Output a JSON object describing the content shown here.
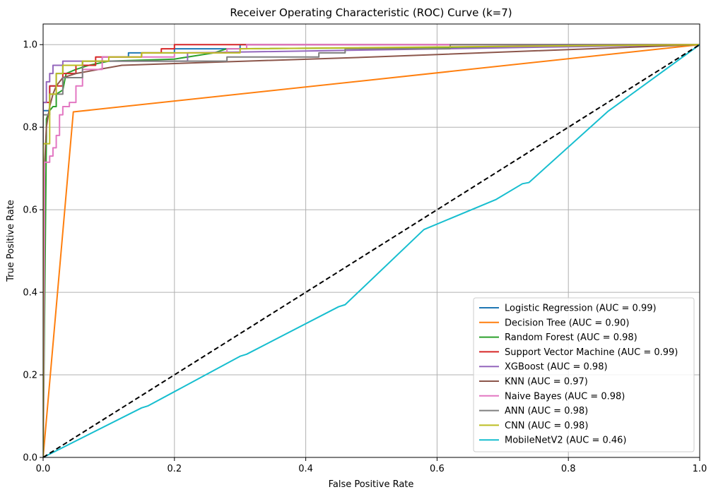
{
  "chart_data": {
    "type": "line",
    "title": "Receiver Operating Characteristic (ROC) Curve (k=7)",
    "xlabel": "False Positive Rate",
    "ylabel": "True Positive Rate",
    "xlim": [
      0,
      1
    ],
    "ylim": [
      0,
      1.05
    ],
    "xticks": [
      "0.0",
      "0.2",
      "0.4",
      "0.6",
      "0.8",
      "1.0"
    ],
    "yticks": [
      "0.0",
      "0.2",
      "0.4",
      "0.6",
      "0.8",
      "1.0"
    ],
    "grid": true,
    "legend_position": "lower-right",
    "series": [
      {
        "name": "Logistic Regression (AUC = 0.99)",
        "color": "#1f77b4",
        "x": [
          0,
          0,
          0.01,
          0.01,
          0.02,
          0.02,
          0.03,
          0.03,
          0.06,
          0.06,
          0.09,
          0.09,
          0.13,
          0.13,
          0.2,
          0.2,
          0.3,
          0.3,
          1.0
        ],
        "y": [
          0,
          0.84,
          0.84,
          0.9,
          0.9,
          0.93,
          0.93,
          0.95,
          0.95,
          0.96,
          0.96,
          0.97,
          0.97,
          0.98,
          0.98,
          0.99,
          0.99,
          1.0,
          1.0
        ]
      },
      {
        "name": "Decision Tree (AUC = 0.90)",
        "color": "#ff7f0e",
        "x": [
          0,
          0.046,
          1.0
        ],
        "y": [
          0,
          0.837,
          1.0
        ]
      },
      {
        "name": "Random Forest (AUC = 0.98)",
        "color": "#2ca02c",
        "x": [
          0,
          0.005,
          0.005,
          0.01,
          0.015,
          0.02,
          0.02,
          0.03,
          0.035,
          0.05,
          0.07,
          0.1,
          0.2,
          0.26,
          0.28,
          0.76,
          1.0
        ],
        "y": [
          0,
          0.78,
          0.82,
          0.84,
          0.85,
          0.85,
          0.88,
          0.89,
          0.93,
          0.94,
          0.95,
          0.96,
          0.965,
          0.98,
          0.99,
          0.995,
          1.0
        ]
      },
      {
        "name": "Support Vector Machine (AUC = 0.99)",
        "color": "#d62728",
        "x": [
          0,
          0,
          0.01,
          0.01,
          0.03,
          0.03,
          0.05,
          0.05,
          0.08,
          0.08,
          0.15,
          0.15,
          0.18,
          0.18,
          0.2,
          0.2,
          1.0
        ],
        "y": [
          0,
          0.86,
          0.86,
          0.9,
          0.9,
          0.93,
          0.93,
          0.95,
          0.95,
          0.97,
          0.97,
          0.98,
          0.98,
          0.99,
          0.99,
          1.0,
          1.0
        ]
      },
      {
        "name": "XGBoost (AUC = 0.98)",
        "color": "#9467bd",
        "x": [
          0,
          0,
          0.005,
          0.005,
          0.01,
          0.01,
          0.015,
          0.015,
          0.03,
          0.03,
          0.07,
          0.07,
          0.22,
          0.22,
          1.0
        ],
        "y": [
          0,
          0.86,
          0.86,
          0.91,
          0.91,
          0.93,
          0.93,
          0.95,
          0.95,
          0.96,
          0.96,
          0.96,
          0.96,
          0.98,
          1.0
        ]
      },
      {
        "name": "KNN (AUC = 0.97)",
        "color": "#8c564b",
        "x": [
          0,
          0.002,
          0.005,
          0.01,
          0.015,
          0.02,
          0.03,
          0.05,
          0.12,
          0.5,
          1.0
        ],
        "y": [
          0,
          0.7,
          0.8,
          0.85,
          0.88,
          0.9,
          0.92,
          0.93,
          0.95,
          0.97,
          1.0
        ]
      },
      {
        "name": "Naive Bayes (AUC = 0.98)",
        "color": "#e377c2",
        "x": [
          0,
          0.002,
          0.002,
          0.01,
          0.01,
          0.015,
          0.015,
          0.02,
          0.02,
          0.025,
          0.025,
          0.03,
          0.03,
          0.04,
          0.04,
          0.05,
          0.05,
          0.06,
          0.06,
          0.09,
          0.09,
          0.2,
          0.2,
          0.28,
          0.28,
          0.31,
          0.31,
          1.0
        ],
        "y": [
          0,
          0.55,
          0.715,
          0.715,
          0.73,
          0.73,
          0.75,
          0.75,
          0.78,
          0.78,
          0.83,
          0.83,
          0.85,
          0.85,
          0.86,
          0.86,
          0.9,
          0.9,
          0.94,
          0.94,
          0.97,
          0.97,
          0.98,
          0.98,
          0.99,
          0.99,
          1.0,
          1.0
        ]
      },
      {
        "name": "ANN (AUC = 0.98)",
        "color": "#7f7f7f",
        "x": [
          0,
          0,
          0.01,
          0.01,
          0.03,
          0.03,
          0.06,
          0.06,
          0.28,
          0.28,
          0.42,
          0.42,
          0.46,
          0.46,
          0.62,
          0.62,
          1.0
        ],
        "y": [
          0,
          0.83,
          0.83,
          0.88,
          0.88,
          0.92,
          0.92,
          0.96,
          0.96,
          0.97,
          0.97,
          0.98,
          0.98,
          0.99,
          0.99,
          1.0,
          1.0
        ]
      },
      {
        "name": "CNN (AUC = 0.98)",
        "color": "#bcbd22",
        "x": [
          0,
          0,
          0.01,
          0.01,
          0.02,
          0.02,
          0.03,
          0.03,
          0.06,
          0.06,
          0.1,
          0.1,
          0.15,
          0.15,
          0.3,
          0.3,
          1.0
        ],
        "y": [
          0,
          0.76,
          0.76,
          0.88,
          0.88,
          0.93,
          0.93,
          0.95,
          0.95,
          0.96,
          0.96,
          0.97,
          0.97,
          0.98,
          0.98,
          0.99,
          1.0
        ]
      },
      {
        "name": "MobileNetV2 (AUC = 0.46)",
        "color": "#17becf",
        "x": [
          0,
          0.15,
          0.16,
          0.3,
          0.31,
          0.45,
          0.46,
          0.58,
          0.69,
          0.73,
          0.74,
          0.86,
          1.0
        ],
        "y": [
          0,
          0.12,
          0.125,
          0.245,
          0.25,
          0.365,
          0.37,
          0.552,
          0.625,
          0.663,
          0.666,
          0.838,
          1.0
        ]
      }
    ],
    "reference_line": {
      "x": [
        0,
        1
      ],
      "y": [
        0,
        1
      ],
      "color": "#000000",
      "style": "dashed"
    }
  }
}
